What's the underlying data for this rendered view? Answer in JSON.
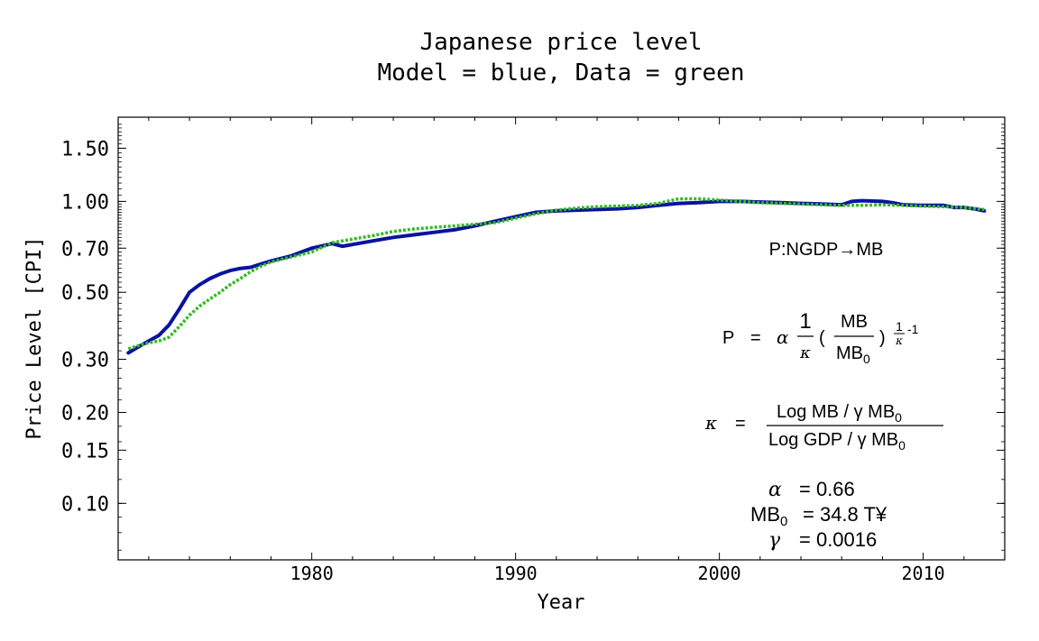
{
  "chart_data": {
    "type": "line",
    "title": "Japanese price level",
    "subtitle": "Model = blue, Data = green",
    "xlabel": "Year",
    "ylabel": "Price Level [CPI]",
    "xlim": [
      1970.5,
      2014
    ],
    "ylim": [
      0.065,
      1.9
    ],
    "yscale": "log",
    "grid": false,
    "x_ticks": [
      1980,
      1990,
      2000,
      2010
    ],
    "x_tick_labels": [
      "1980",
      "1990",
      "2000",
      "2010"
    ],
    "y_ticks": [
      0.1,
      0.15,
      0.2,
      0.3,
      0.5,
      0.7,
      1.0,
      1.5
    ],
    "y_tick_labels": [
      "0.10",
      "0.15",
      "0.20",
      "0.30",
      "0.50",
      "0.70",
      "1.00",
      "1.50"
    ],
    "series": [
      {
        "color": "#0a12a0",
        "style": "solid",
        "points": [
          [
            1971.0,
            0.315
          ],
          [
            1971.5,
            0.33
          ],
          [
            1972.0,
            0.345
          ],
          [
            1972.5,
            0.36
          ],
          [
            1973.0,
            0.39
          ],
          [
            1973.5,
            0.44
          ],
          [
            1974.0,
            0.5
          ],
          [
            1974.5,
            0.53
          ],
          [
            1975.0,
            0.555
          ],
          [
            1975.5,
            0.575
          ],
          [
            1976.0,
            0.59
          ],
          [
            1976.5,
            0.6
          ],
          [
            1977.0,
            0.605
          ],
          [
            1977.5,
            0.62
          ],
          [
            1978.0,
            0.635
          ],
          [
            1979.0,
            0.66
          ],
          [
            1980.0,
            0.7
          ],
          [
            1981.0,
            0.725
          ],
          [
            1981.5,
            0.71
          ],
          [
            1982.0,
            0.72
          ],
          [
            1983.0,
            0.74
          ],
          [
            1984.0,
            0.76
          ],
          [
            1985.0,
            0.775
          ],
          [
            1986.0,
            0.79
          ],
          [
            1987.0,
            0.805
          ],
          [
            1988.0,
            0.83
          ],
          [
            1989.0,
            0.86
          ],
          [
            1990.0,
            0.89
          ],
          [
            1991.0,
            0.92
          ],
          [
            1992.0,
            0.93
          ],
          [
            1993.0,
            0.935
          ],
          [
            1994.0,
            0.94
          ],
          [
            1995.0,
            0.945
          ],
          [
            1996.0,
            0.955
          ],
          [
            1997.0,
            0.97
          ],
          [
            1998.0,
            0.985
          ],
          [
            1999.0,
            0.99
          ],
          [
            2000.0,
            1.0
          ],
          [
            2001.0,
            1.0
          ],
          [
            2002.0,
            0.995
          ],
          [
            2003.0,
            0.99
          ],
          [
            2004.0,
            0.985
          ],
          [
            2005.0,
            0.98
          ],
          [
            2006.0,
            0.975
          ],
          [
            2006.5,
            1.0
          ],
          [
            2007.0,
            1.005
          ],
          [
            2008.0,
            1.0
          ],
          [
            2008.5,
            0.99
          ],
          [
            2009.0,
            0.975
          ],
          [
            2010.0,
            0.97
          ],
          [
            2011.0,
            0.97
          ],
          [
            2011.5,
            0.955
          ],
          [
            2012.0,
            0.955
          ],
          [
            2012.5,
            0.945
          ],
          [
            2013.0,
            0.93
          ]
        ]
      },
      {
        "color": "#33bb22",
        "style": "dotted",
        "points": [
          [
            1971.0,
            0.325
          ],
          [
            1971.5,
            0.333
          ],
          [
            1972.0,
            0.34
          ],
          [
            1972.5,
            0.345
          ],
          [
            1973.0,
            0.355
          ],
          [
            1973.5,
            0.385
          ],
          [
            1974.0,
            0.42
          ],
          [
            1974.5,
            0.45
          ],
          [
            1975.0,
            0.475
          ],
          [
            1975.5,
            0.5
          ],
          [
            1976.0,
            0.53
          ],
          [
            1976.5,
            0.555
          ],
          [
            1977.0,
            0.585
          ],
          [
            1977.5,
            0.61
          ],
          [
            1978.0,
            0.63
          ],
          [
            1979.0,
            0.655
          ],
          [
            1980.0,
            0.68
          ],
          [
            1981.0,
            0.73
          ],
          [
            1982.0,
            0.75
          ],
          [
            1983.0,
            0.77
          ],
          [
            1984.0,
            0.795
          ],
          [
            1985.0,
            0.81
          ],
          [
            1986.0,
            0.82
          ],
          [
            1987.0,
            0.83
          ],
          [
            1988.0,
            0.84
          ],
          [
            1989.0,
            0.85
          ],
          [
            1990.0,
            0.88
          ],
          [
            1991.0,
            0.91
          ],
          [
            1992.0,
            0.935
          ],
          [
            1993.0,
            0.95
          ],
          [
            1994.0,
            0.96
          ],
          [
            1995.0,
            0.965
          ],
          [
            1996.0,
            0.97
          ],
          [
            1997.0,
            0.985
          ],
          [
            1998.0,
            1.02
          ],
          [
            1999.0,
            1.02
          ],
          [
            2000.0,
            1.01
          ],
          [
            2001.0,
            1.0
          ],
          [
            2002.0,
            0.99
          ],
          [
            2003.0,
            0.985
          ],
          [
            2004.0,
            0.98
          ],
          [
            2005.0,
            0.975
          ],
          [
            2006.0,
            0.97
          ],
          [
            2007.0,
            0.97
          ],
          [
            2008.0,
            0.975
          ],
          [
            2009.0,
            0.97
          ],
          [
            2010.0,
            0.965
          ],
          [
            2011.0,
            0.96
          ],
          [
            2012.0,
            0.955
          ],
          [
            2013.0,
            0.94
          ]
        ]
      }
    ],
    "annotations": {
      "mapping": "P:NGDP→MB",
      "p_formula": {
        "lhs": "P",
        "eq": "=",
        "alpha": "α",
        "one": "1",
        "kappa": "κ",
        "lparen": "(",
        "mb": "MB",
        "mb0_base": "MB",
        "mb0_sub": "0",
        "rparen": ")",
        "exp_one": "1",
        "exp_kappa": "κ",
        "exp_minus": "-1"
      },
      "kappa_formula": {
        "lhs": "κ",
        "eq": "=",
        "numerator": "Log MB / γ MB",
        "numerator_sub": "0",
        "denominator": "Log GDP / γ MB",
        "denominator_sub": "0"
      },
      "params": {
        "alpha_sym": "α",
        "alpha_eq": "= 0.66",
        "mb0_base": "MB",
        "mb0_sub": "0",
        "mb0_eq": "= 34.8 T¥",
        "gamma_sym": "γ",
        "gamma_eq": "= 0.0016"
      }
    }
  }
}
